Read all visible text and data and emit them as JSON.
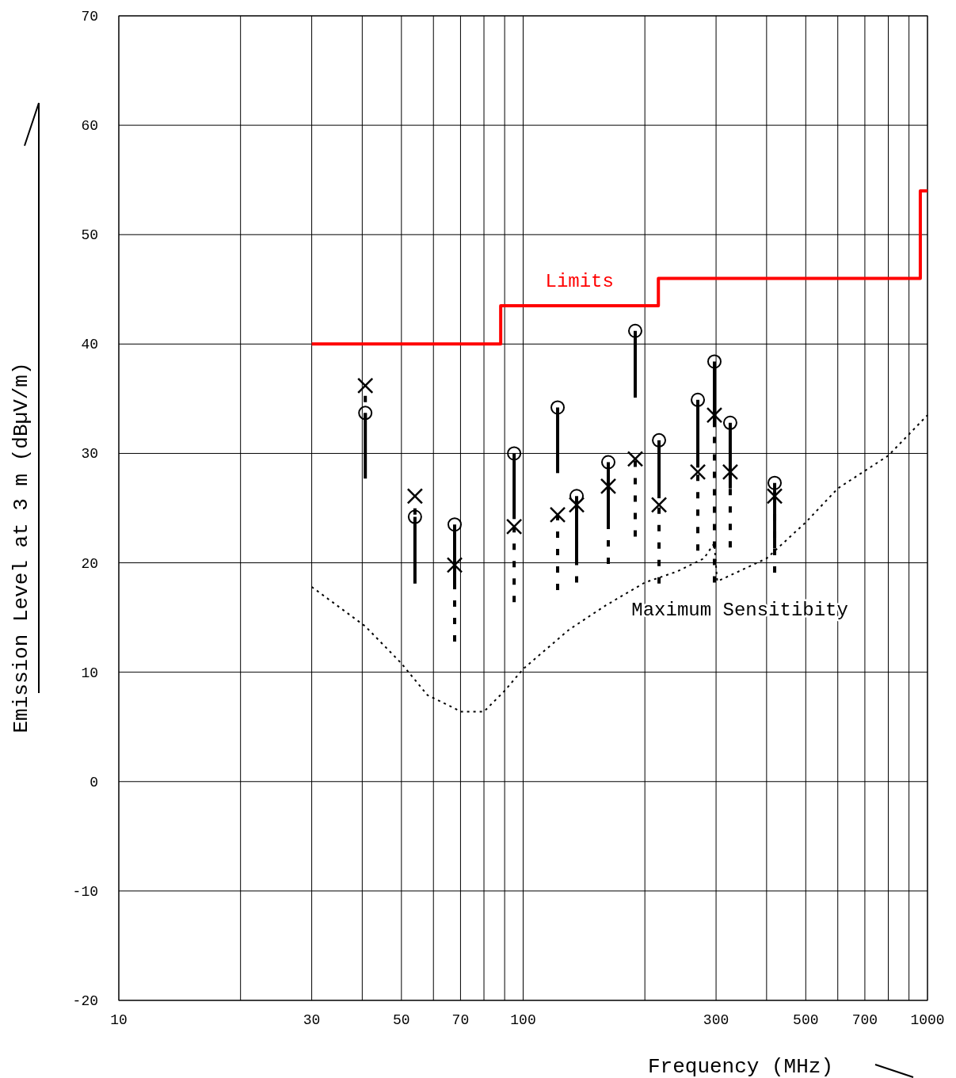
{
  "chart_data": {
    "type": "scatter",
    "xlabel": "Frequency (MHz)",
    "ylabel": "Emission Level at 3 m (dBµV/m)",
    "log": "x",
    "grid": true,
    "xlim": [
      10,
      1000
    ],
    "ylim": [
      -20,
      70
    ],
    "xticks": [
      10,
      {
        "value": 20,
        "label": null
      },
      30,
      {
        "value": 40,
        "label": null
      },
      50,
      {
        "value": 60,
        "label": null
      },
      70,
      {
        "value": 80,
        "label": null
      },
      {
        "value": 90,
        "label": null
      },
      100,
      {
        "value": 200,
        "label": null
      },
      300,
      {
        "value": 400,
        "label": null
      },
      500,
      {
        "value": 600,
        "label": null
      },
      700,
      {
        "value": 800,
        "label": null
      },
      {
        "value": 900,
        "label": null
      },
      1000
    ],
    "yticks": [
      -20,
      -10,
      0,
      10,
      20,
      30,
      40,
      50,
      60,
      70
    ],
    "series": [
      {
        "marker": "circle",
        "line_style": "solid",
        "color": "#000000",
        "x": [
          40.7,
          54,
          67.7,
          95,
          121.7,
          135.6,
          162.4,
          189.3,
          216.8,
          270.4,
          297.2,
          325.2,
          418.8
        ],
        "values": [
          33.7,
          24.2,
          23.5,
          30.0,
          34.2,
          26.1,
          29.2,
          41.2,
          31.2,
          34.9,
          38.4,
          32.8,
          27.3
        ],
        "errors": [
          [
            27.7,
            33.7
          ],
          [
            18.1,
            24.2
          ],
          [
            17.9,
            23.5
          ],
          [
            24.0,
            30.0
          ],
          [
            28.2,
            34.2
          ],
          [
            20.1,
            26.1
          ],
          [
            23.1,
            29.2
          ],
          [
            35.1,
            41.2
          ],
          [
            25.9,
            31.2
          ],
          [
            28.7,
            34.9
          ],
          [
            32.4,
            38.4
          ],
          [
            26.8,
            32.8
          ],
          [
            21.3,
            27.3
          ]
        ]
      },
      {
        "marker": "cross",
        "line_style": "dotted",
        "color": "#000000",
        "x": [
          40.7,
          54,
          67.7,
          95,
          121.7,
          135.6,
          162.4,
          189.3,
          216.8,
          270.4,
          297.2,
          325.2,
          418.8
        ],
        "values": [
          36.2,
          26.1,
          19.8,
          23.3,
          24.4,
          25.3,
          27.0,
          29.5,
          25.3,
          28.3,
          33.5,
          28.3,
          26.1
        ],
        "errors": [
          [
            33.1,
            36.2
          ],
          [
            24.4,
            26.1
          ],
          [
            12.8,
            19.8
          ],
          [
            16.4,
            23.3
          ],
          [
            17.5,
            24.4
          ],
          [
            18.2,
            25.3
          ],
          [
            19.9,
            27.0
          ],
          [
            22.4,
            29.5
          ],
          [
            18.1,
            25.3
          ],
          [
            21.1,
            28.3
          ],
          [
            18.2,
            33.5
          ],
          [
            21.4,
            28.3
          ],
          [
            19.1,
            26.1
          ]
        ]
      },
      {
        "type": "step",
        "name": "Limits",
        "color": "#ff0000",
        "line_style": "solid",
        "marker": "none",
        "x": [
          30,
          88,
          216,
          960,
          1000
        ],
        "values": [
          40,
          43.5,
          46,
          54,
          54
        ]
      },
      {
        "type": "line",
        "name": "Maximum Sensitibity",
        "color": "#000000",
        "line_style": "dotted",
        "marker": "none",
        "x": [
          30,
          40.7,
          50,
          58,
          67.7,
          70,
          80,
          90,
          100,
          130,
          160,
          200,
          240,
          280,
          297,
          302,
          400,
          500,
          600,
          800,
          1000
        ],
        "values": [
          17.8,
          14.2,
          10.8,
          7.9,
          6.7,
          6.4,
          6.4,
          8.3,
          10.3,
          13.9,
          16.1,
          18.2,
          19.2,
          20.4,
          21.8,
          18.3,
          20.4,
          23.7,
          26.8,
          29.8,
          33.5
        ]
      }
    ]
  }
}
